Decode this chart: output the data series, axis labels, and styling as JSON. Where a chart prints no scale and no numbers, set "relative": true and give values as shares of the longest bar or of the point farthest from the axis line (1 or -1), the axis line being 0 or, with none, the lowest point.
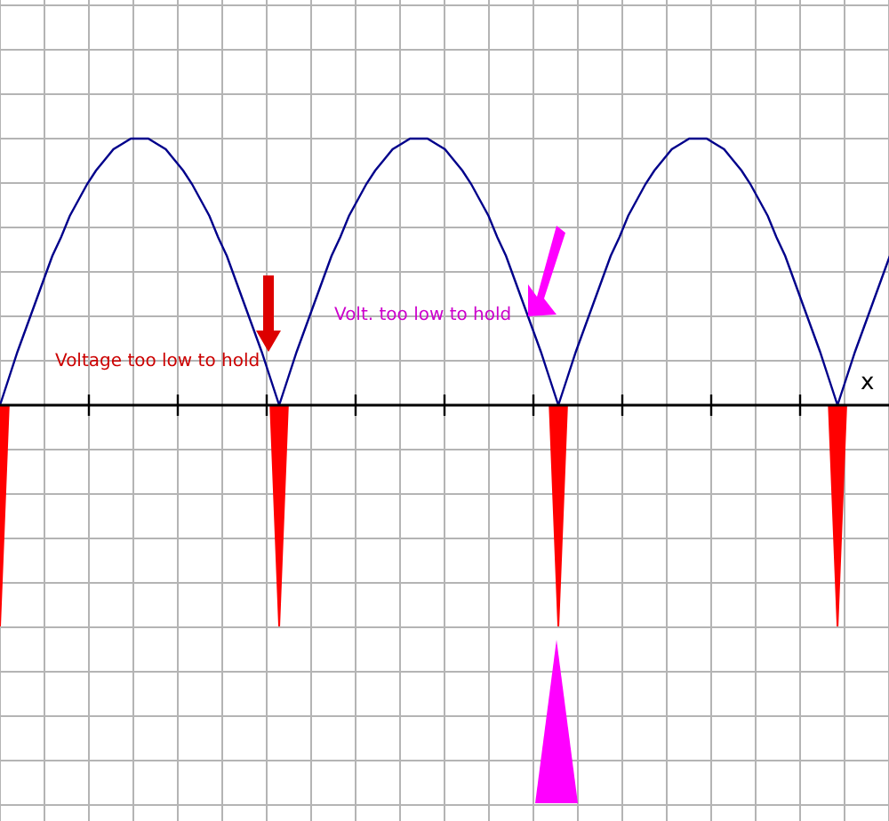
{
  "chart_data": {
    "type": "line",
    "relative": true,
    "xlabel": "x",
    "grid": true,
    "marker": "none",
    "annotations": [
      "Voltage too low to hold",
      "Volt. too low to hold"
    ],
    "categories": [
      null,
      null,
      null,
      null,
      null,
      null,
      null,
      null,
      null,
      null,
      null,
      null,
      null,
      null,
      null,
      null,
      null,
      null,
      null,
      null,
      null,
      null,
      null,
      null,
      null,
      null,
      null,
      null,
      null,
      null,
      null,
      null,
      null,
      null,
      null,
      null,
      null,
      null,
      null,
      null,
      null,
      null,
      null,
      null,
      null,
      null,
      null,
      null,
      null,
      null,
      null,
      null,
      null,
      null,
      null,
      null,
      null,
      null,
      null,
      null,
      null,
      null,
      null,
      null,
      null,
      null,
      null,
      null,
      null,
      null,
      null,
      null,
      null,
      null,
      null,
      null,
      null,
      null,
      null,
      null,
      null,
      null,
      null,
      null,
      null,
      null,
      null,
      null,
      null,
      null,
      null,
      null,
      null,
      null,
      null,
      null,
      null,
      null,
      null,
      null,
      null,
      null,
      null
    ],
    "series": [
      {
        "color": "#00008b",
        "line_style": "solid",
        "values": [
          0,
          0.1,
          0.2,
          0.29,
          0.38,
          0.47,
          0.56,
          0.63,
          0.71,
          0.77,
          0.83,
          0.88,
          0.92,
          0.96,
          0.98,
          1,
          1,
          1,
          0.98,
          0.96,
          0.92,
          0.88,
          0.83,
          0.77,
          0.71,
          0.63,
          0.56,
          0.47,
          0.38,
          0.29,
          0.2,
          0.1,
          0,
          0.1,
          0.2,
          0.29,
          0.38,
          0.47,
          0.56,
          0.63,
          0.71,
          0.77,
          0.83,
          0.88,
          0.92,
          0.96,
          0.98,
          1,
          1,
          1,
          0.98,
          0.96,
          0.92,
          0.88,
          0.83,
          0.77,
          0.71,
          0.63,
          0.56,
          0.47,
          0.38,
          0.29,
          0.2,
          0.1,
          0,
          0.1,
          0.2,
          0.29,
          0.38,
          0.47,
          0.56,
          0.63,
          0.71,
          0.77,
          0.83,
          0.88,
          0.92,
          0.96,
          0.98,
          1,
          1,
          1,
          0.98,
          0.96,
          0.92,
          0.88,
          0.83,
          0.77,
          0.71,
          0.63,
          0.56,
          0.47,
          0.38,
          0.29,
          0.2,
          0.1,
          0,
          0.1,
          0.2,
          0.29,
          0.38,
          0.47,
          0.56
        ]
      },
      {
        "type": "area",
        "color": "#ff0000",
        "values": [
          -0.83,
          0,
          0,
          0,
          0,
          0,
          0,
          0,
          0,
          0,
          0,
          0,
          0,
          0,
          0,
          0,
          0,
          0,
          0,
          0,
          0,
          0,
          0,
          0,
          0,
          0,
          0,
          0,
          0,
          0,
          0,
          0,
          -0.83,
          0,
          0,
          0,
          0,
          0,
          0,
          0,
          0,
          0,
          0,
          0,
          0,
          0,
          0,
          0,
          0,
          0,
          0,
          0,
          0,
          0,
          0,
          0,
          0,
          0,
          0,
          0,
          0,
          0,
          0,
          0,
          -0.83,
          0,
          0,
          0,
          0,
          0,
          0,
          0,
          0,
          0,
          0,
          0,
          0,
          0,
          0,
          0,
          0,
          0,
          0,
          0,
          0,
          0,
          0,
          0,
          0,
          0,
          0,
          0,
          0,
          0,
          0,
          0,
          -0.83,
          0,
          0,
          0,
          0,
          0,
          0
        ]
      }
    ]
  }
}
